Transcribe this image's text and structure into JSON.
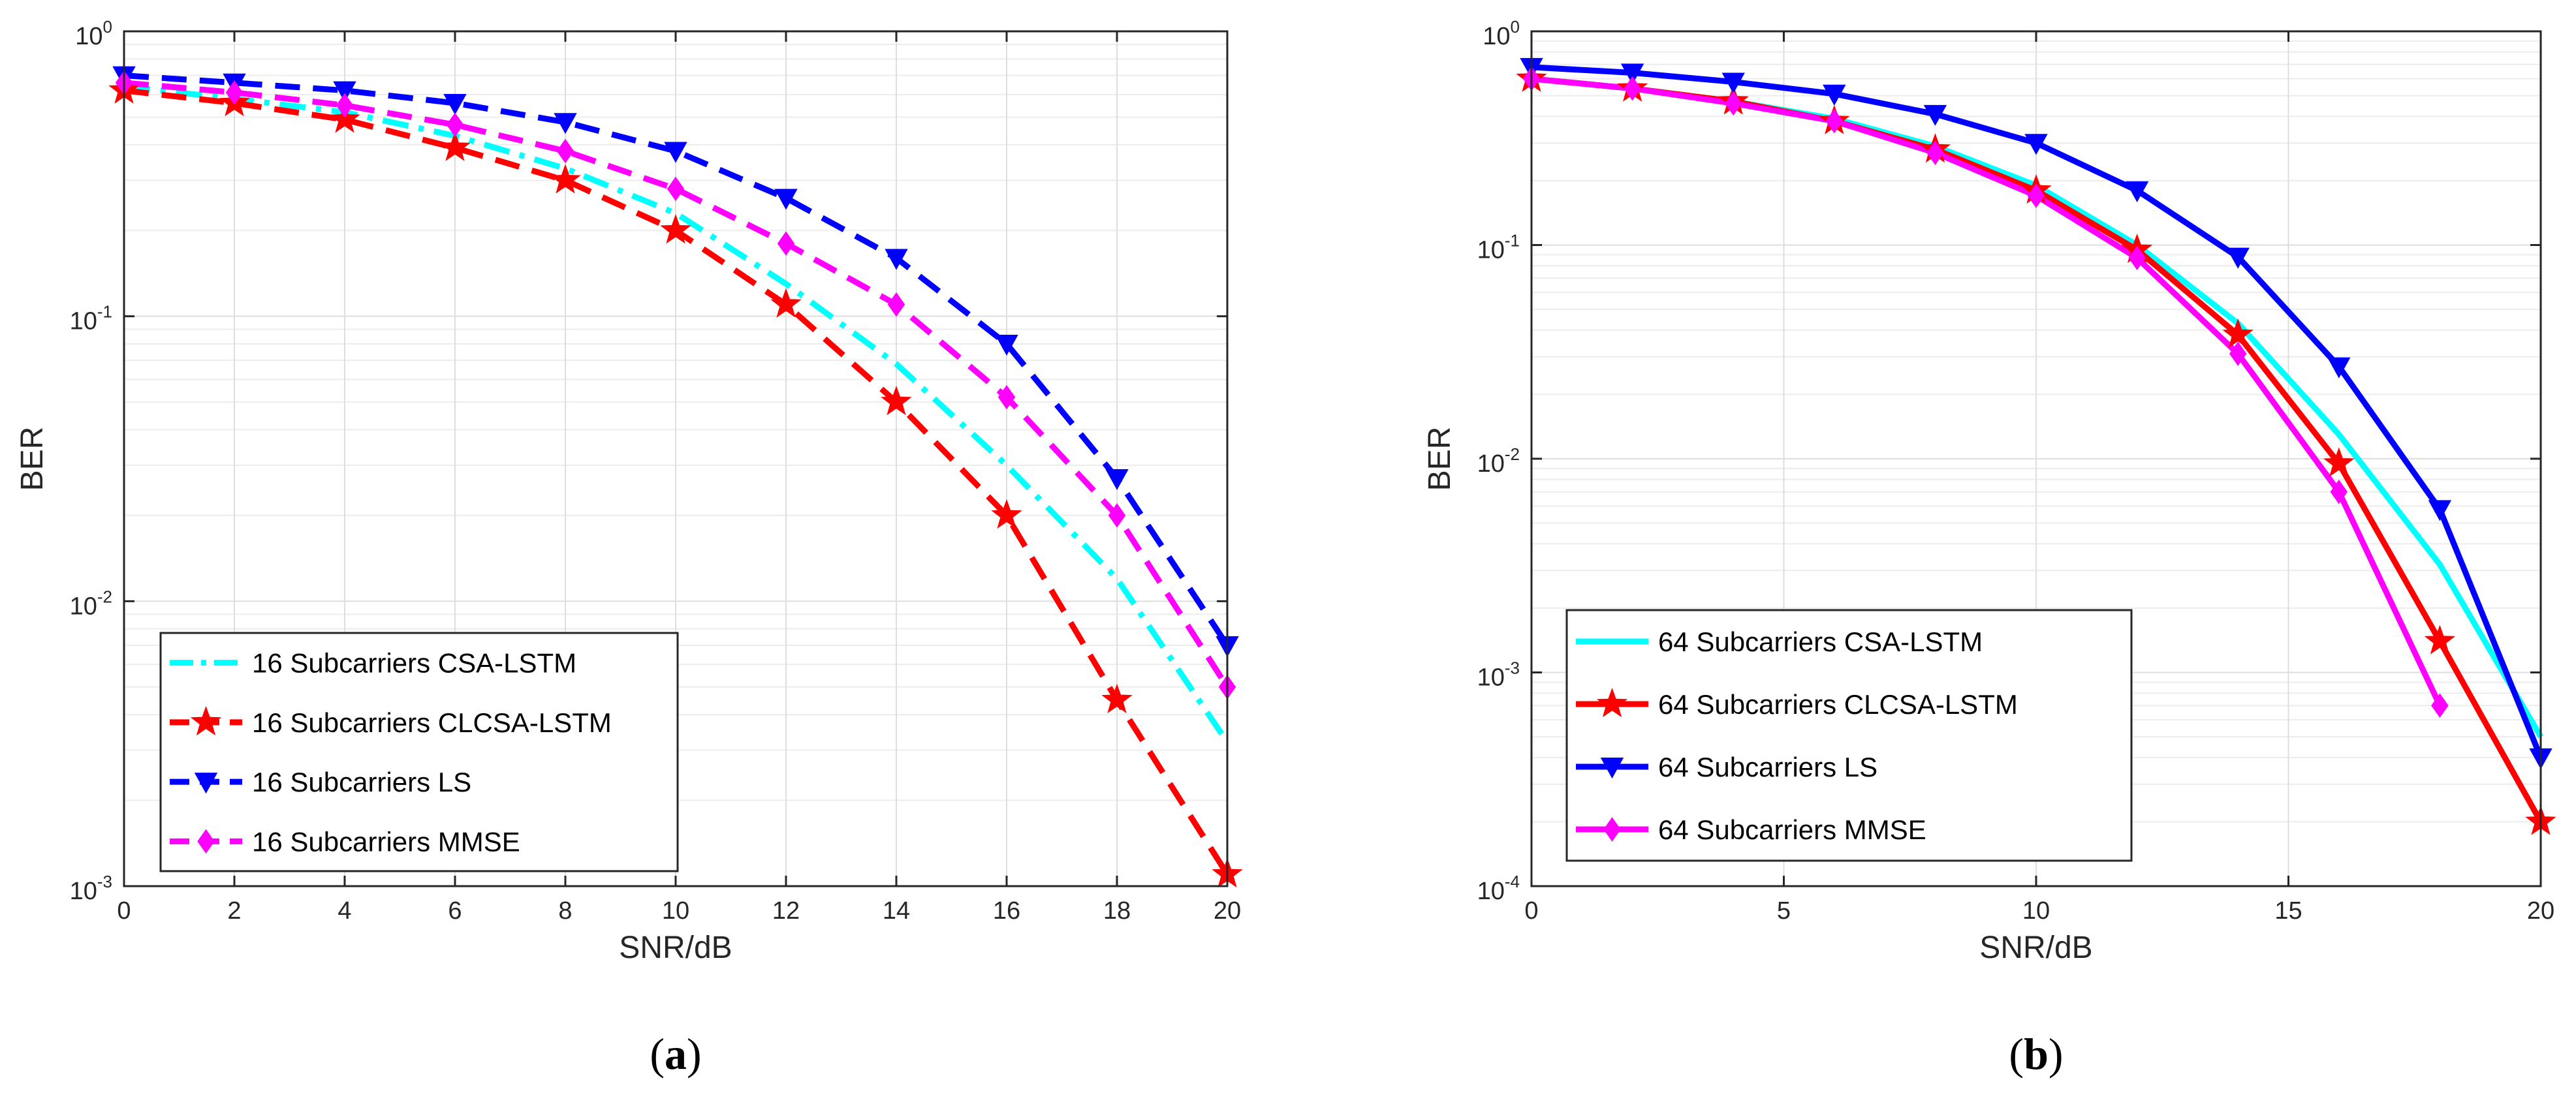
{
  "chart_data": [
    {
      "type": "line",
      "panel_label": "a",
      "xlabel": "SNR/dB",
      "ylabel": "BER",
      "yscale": "log",
      "xlim": [
        0,
        20
      ],
      "ylim": [
        0.001,
        1
      ],
      "grid": true,
      "legend_position": "bottom-left",
      "xticks": [
        0,
        2,
        4,
        6,
        8,
        10,
        12,
        14,
        16,
        18,
        20
      ],
      "yticks": [
        {
          "base": "10",
          "exp": "0",
          "value": 1
        },
        {
          "base": "10",
          "exp": "-1",
          "value": 0.1
        },
        {
          "base": "10",
          "exp": "-2",
          "value": 0.01
        },
        {
          "base": "10",
          "exp": "-3",
          "value": 0.001
        }
      ],
      "series": [
        {
          "name": "16 Subcarriers CSA-LSTM",
          "color": "#00ffff",
          "dash": "dashdot",
          "marker": "none",
          "x": [
            0,
            2,
            4,
            6,
            8,
            10,
            12,
            14,
            16,
            18,
            20
          ],
          "y": [
            0.64,
            0.58,
            0.52,
            0.43,
            0.33,
            0.23,
            0.13,
            0.068,
            0.03,
            0.012,
            0.0032
          ]
        },
        {
          "name": "16 Subcarriers CLCSA-LSTM",
          "color": "#ff0000",
          "dash": "dashed",
          "marker": "star",
          "x": [
            0,
            2,
            4,
            6,
            8,
            10,
            12,
            14,
            16,
            18,
            20
          ],
          "y": [
            0.62,
            0.56,
            0.49,
            0.39,
            0.3,
            0.2,
            0.11,
            0.05,
            0.02,
            0.0045,
            0.0011
          ]
        },
        {
          "name": "16 Subcarriers LS",
          "color": "#0000ff",
          "dash": "dashed",
          "marker": "triangle-down",
          "x": [
            0,
            2,
            4,
            6,
            8,
            10,
            12,
            14,
            16,
            18,
            20
          ],
          "y": [
            0.7,
            0.66,
            0.62,
            0.56,
            0.48,
            0.38,
            0.26,
            0.16,
            0.08,
            0.027,
            0.007
          ]
        },
        {
          "name": "16 Subcarriers MMSE",
          "color": "#ff00ff",
          "dash": "dashed",
          "marker": "diamond",
          "x": [
            0,
            2,
            4,
            6,
            8,
            10,
            12,
            14,
            16,
            18,
            20
          ],
          "y": [
            0.66,
            0.61,
            0.55,
            0.47,
            0.38,
            0.28,
            0.18,
            0.11,
            0.052,
            0.02,
            0.005
          ]
        }
      ]
    },
    {
      "type": "line",
      "panel_label": "b",
      "xlabel": "SNR/dB",
      "ylabel": "BER",
      "yscale": "log",
      "xlim": [
        0,
        20
      ],
      "ylim": [
        0.0001,
        1
      ],
      "grid": true,
      "legend_position": "bottom-left",
      "xticks": [
        0,
        5,
        10,
        15,
        20
      ],
      "yticks": [
        {
          "base": "10",
          "exp": "0",
          "value": 1
        },
        {
          "base": "10",
          "exp": "-1",
          "value": 0.1
        },
        {
          "base": "10",
          "exp": "-2",
          "value": 0.01
        },
        {
          "base": "10",
          "exp": "-3",
          "value": 0.001
        },
        {
          "base": "10",
          "exp": "-4",
          "value": 0.0001
        }
      ],
      "series": [
        {
          "name": "64 Subcarriers CSA-LSTM",
          "color": "#00ffff",
          "dash": "solid",
          "marker": "none",
          "x": [
            0,
            2,
            4,
            6,
            8,
            10,
            12,
            14,
            16,
            18,
            20
          ],
          "y": [
            0.6,
            0.54,
            0.47,
            0.39,
            0.29,
            0.19,
            0.1,
            0.043,
            0.013,
            0.0032,
            0.0005
          ]
        },
        {
          "name": "64 Subcarriers CLCSA-LSTM",
          "color": "#ff0000",
          "dash": "solid",
          "marker": "star",
          "x": [
            0,
            2,
            4,
            6,
            8,
            10,
            12,
            14,
            16,
            18,
            20
          ],
          "y": [
            0.6,
            0.54,
            0.47,
            0.38,
            0.28,
            0.18,
            0.095,
            0.038,
            0.0095,
            0.0014,
            0.0002
          ]
        },
        {
          "name": "64 Subcarriers LS",
          "color": "#0000ff",
          "dash": "solid",
          "marker": "triangle-down",
          "x": [
            0,
            2,
            4,
            6,
            8,
            10,
            12,
            14,
            16,
            18,
            20
          ],
          "y": [
            0.68,
            0.64,
            0.58,
            0.51,
            0.41,
            0.3,
            0.18,
            0.088,
            0.027,
            0.0058,
            0.0004
          ]
        },
        {
          "name": "64 Subcarriers MMSE",
          "color": "#ff00ff",
          "dash": "solid",
          "marker": "diamond",
          "x": [
            0,
            2,
            4,
            6,
            8,
            10,
            12,
            14,
            16,
            18
          ],
          "y": [
            0.6,
            0.54,
            0.46,
            0.38,
            0.27,
            0.17,
            0.087,
            0.031,
            0.007,
            0.0007
          ]
        }
      ]
    }
  ]
}
